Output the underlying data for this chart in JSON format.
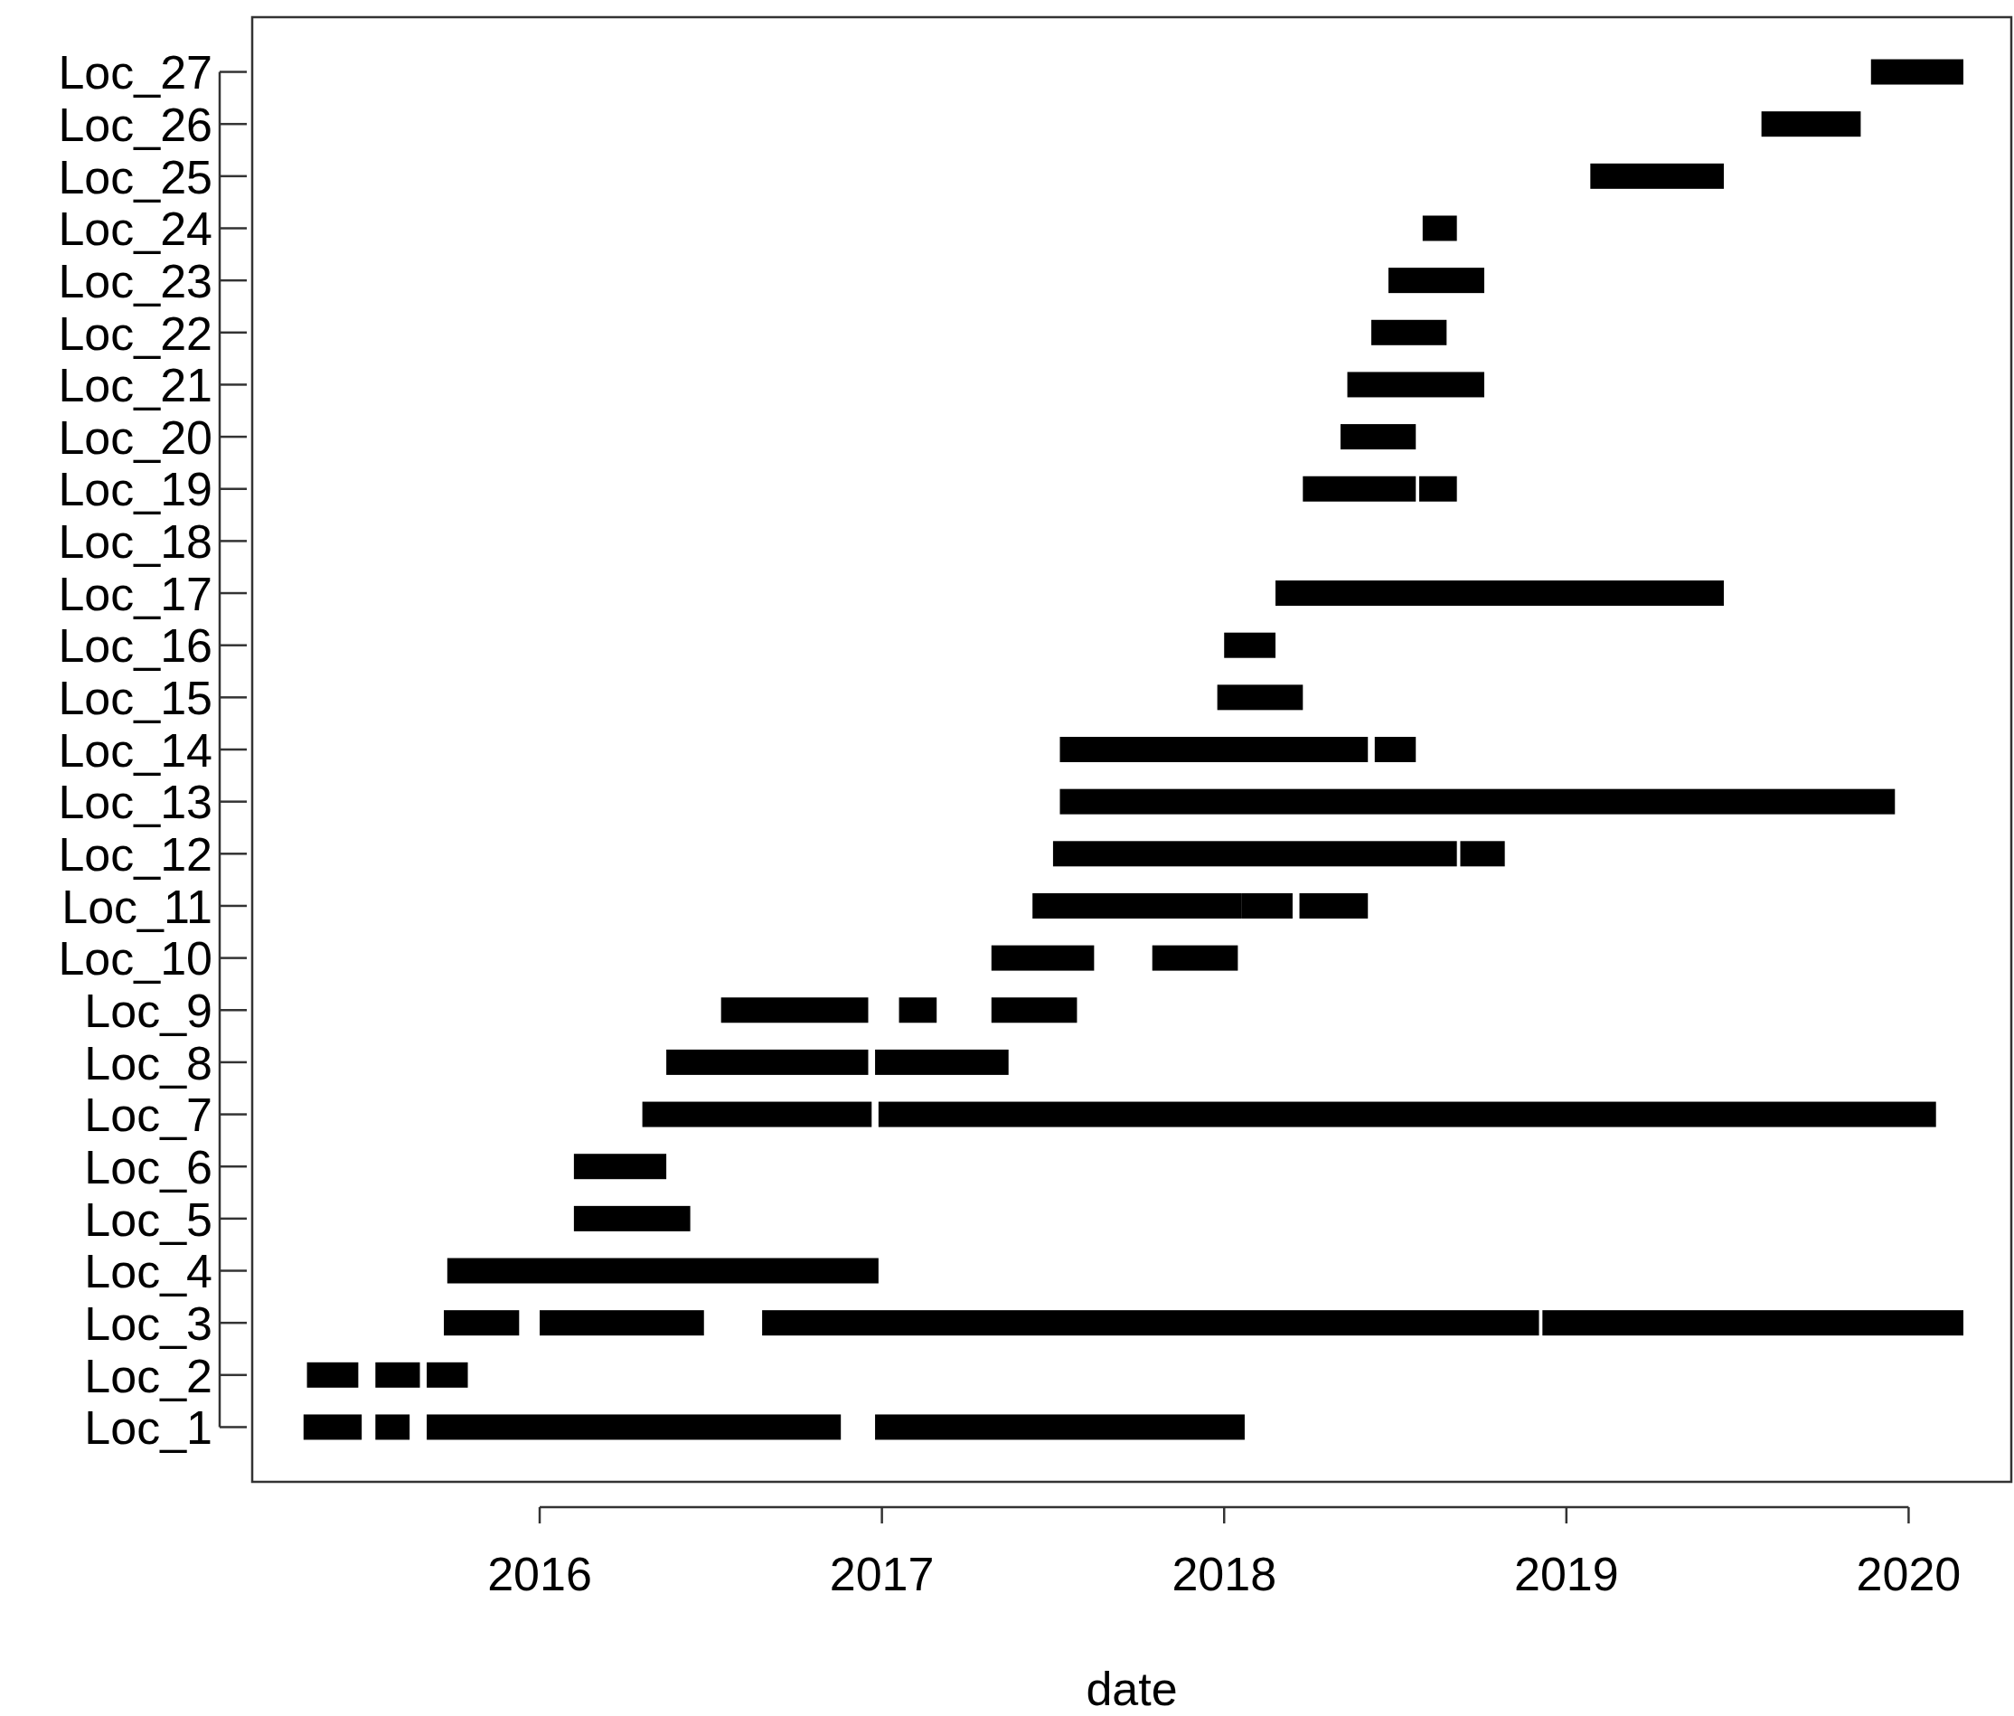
{
  "chart_data": {
    "type": "bar",
    "orientation": "horizontal",
    "xlabel": "date",
    "categories": [
      "Loc_27",
      "Loc_26",
      "Loc_25",
      "Loc_24",
      "Loc_23",
      "Loc_22",
      "Loc_21",
      "Loc_20",
      "Loc_19",
      "Loc_18",
      "Loc_17",
      "Loc_16",
      "Loc_15",
      "Loc_14",
      "Loc_13",
      "Loc_12",
      "Loc_11",
      "Loc_10",
      "Loc_9",
      "Loc_8",
      "Loc_7",
      "Loc_6",
      "Loc_5",
      "Loc_4",
      "Loc_3",
      "Loc_2",
      "Loc_1"
    ],
    "series": [
      {
        "color": "#000000",
        "base": [
          2019.89,
          2019.57,
          2019.07,
          2018.58,
          2018.48,
          2018.43,
          2018.36,
          2018.34,
          2018.23,
          null,
          2018.15,
          2018.0,
          2017.98,
          2017.52,
          2017.52,
          2017.5,
          2017.44,
          2017.32,
          2016.53,
          2016.37,
          2016.3,
          2016.1,
          2016.1,
          2015.73,
          2015.72,
          2015.32,
          2015.31
        ],
        "values": [
          0.27,
          0.29,
          0.39,
          0.1,
          0.28,
          0.22,
          0.4,
          0.22,
          0.33,
          null,
          1.31,
          0.15,
          0.25,
          0.9,
          2.44,
          1.18,
          0.61,
          0.3,
          0.43,
          0.59,
          0.67,
          0.27,
          0.34,
          1.26,
          0.22,
          0.15,
          0.17
        ]
      },
      {
        "color": "#000000",
        "base": [
          null,
          null,
          null,
          null,
          null,
          null,
          null,
          null,
          2018.57,
          null,
          null,
          null,
          null,
          2018.44,
          null,
          2018.69,
          2018.05,
          2017.79,
          2017.05,
          2016.98,
          2016.99,
          null,
          null,
          null,
          2016.0,
          2015.52,
          2015.52
        ],
        "values": [
          null,
          null,
          null,
          null,
          null,
          null,
          null,
          null,
          0.11,
          null,
          null,
          null,
          null,
          0.12,
          null,
          0.13,
          0.15,
          0.25,
          0.11,
          0.39,
          3.09,
          null,
          null,
          null,
          0.48,
          0.13,
          0.1
        ]
      },
      {
        "color": "#000000",
        "base": [
          null,
          null,
          null,
          null,
          null,
          null,
          null,
          null,
          null,
          null,
          null,
          null,
          null,
          null,
          null,
          null,
          2018.22,
          null,
          2017.32,
          null,
          null,
          null,
          null,
          null,
          2016.65,
          2015.67,
          2015.67
        ],
        "values": [
          null,
          null,
          null,
          null,
          null,
          null,
          null,
          null,
          null,
          null,
          null,
          null,
          null,
          null,
          null,
          null,
          0.2,
          null,
          0.25,
          null,
          null,
          null,
          null,
          null,
          2.27,
          0.12,
          1.21
        ]
      },
      {
        "color": "#000000",
        "base": [
          null,
          null,
          null,
          null,
          null,
          null,
          null,
          null,
          null,
          null,
          null,
          null,
          null,
          null,
          null,
          null,
          null,
          null,
          null,
          null,
          null,
          null,
          null,
          null,
          2018.93,
          null,
          2016.98
        ],
        "values": [
          null,
          null,
          null,
          null,
          null,
          null,
          null,
          null,
          null,
          null,
          null,
          null,
          null,
          null,
          null,
          null,
          null,
          null,
          null,
          null,
          null,
          null,
          null,
          null,
          1.23,
          null,
          1.08
        ]
      }
    ],
    "xlim": [
      2015.16,
      2020.3
    ],
    "xticks": [
      2016,
      2017,
      2018,
      2019,
      2020
    ]
  }
}
